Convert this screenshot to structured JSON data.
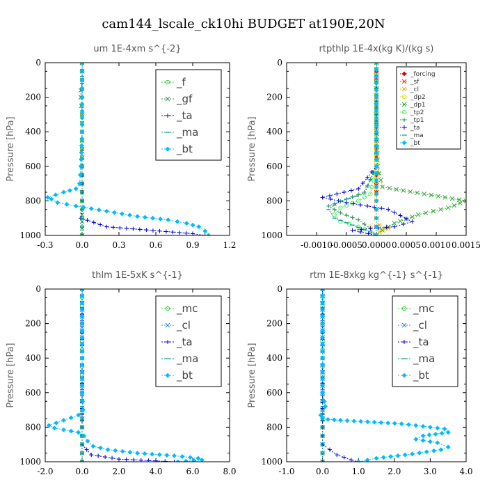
{
  "title": "cam144_lscale_ck10hi  BUDGET at190E,20N",
  "chart_data": [
    {
      "type": "line",
      "title": "um  1E-4xm s^{-2}",
      "ylabel": "Pressure [hPa]",
      "xlim": [
        -0.3,
        1.2
      ],
      "ylim": [
        1000,
        0
      ],
      "xticks": [
        "-0.3",
        "0.0",
        "0.3",
        "0.6",
        "0.9",
        "1.2"
      ],
      "xtick_values": [
        -0.3,
        0.0,
        0.3,
        0.6,
        0.9,
        1.2
      ],
      "yticks": [
        "0",
        "200",
        "400",
        "600",
        "800",
        "1000"
      ],
      "ytick_values": [
        0,
        200,
        400,
        600,
        800,
        1000
      ],
      "legend_position": "top-right",
      "legend_size": "large",
      "series": [
        {
          "name": "_f",
          "color": "#33cc33",
          "marker": "circle",
          "x": [
            0,
            0,
            0,
            0,
            0,
            0,
            0,
            0,
            0,
            0,
            0
          ],
          "y": [
            0,
            100,
            200,
            300,
            400,
            500,
            600,
            700,
            800,
            900,
            1000
          ]
        },
        {
          "name": "_gf",
          "color": "#2e8b57",
          "marker": "x",
          "x": [
            0,
            0,
            -0.01,
            -0.01,
            0,
            0,
            0,
            0,
            0,
            0,
            0
          ],
          "y": [
            0,
            100,
            160,
            200,
            300,
            400,
            500,
            600,
            700,
            800,
            1000
          ]
        },
        {
          "name": "_ta",
          "color": "#0000dd",
          "marker": "plus",
          "x": [
            0,
            0,
            0,
            0,
            0,
            0,
            0,
            0,
            -0.01,
            0.2,
            0.9,
            1.0
          ],
          "y": [
            0,
            200,
            400,
            600,
            700,
            750,
            800,
            850,
            900,
            950,
            990,
            1000
          ]
        },
        {
          "name": "_ma",
          "color": "#009999",
          "marker": "dash",
          "x": [
            0,
            0,
            0,
            0,
            0,
            0,
            0,
            0,
            0
          ],
          "y": [
            0,
            200,
            400,
            600,
            700,
            800,
            850,
            900,
            1000
          ]
        },
        {
          "name": "_bt",
          "color": "#00bbff",
          "marker": "diamond",
          "x": [
            0,
            0,
            0,
            0,
            -0.01,
            -0.02,
            -0.05,
            -0.15,
            -0.28,
            -0.25,
            -0.2,
            -0.05,
            0.2,
            0.45,
            0.7,
            0.85,
            0.95,
            1.0,
            1.03
          ],
          "y": [
            0,
            100,
            200,
            400,
            600,
            700,
            730,
            750,
            780,
            790,
            810,
            830,
            860,
            890,
            910,
            930,
            950,
            975,
            1000
          ]
        }
      ]
    },
    {
      "type": "line",
      "title": "rtpthlp  1E-4x(kg K)/(kg s)",
      "ylabel": "Pressure [hPa]",
      "xlim": [
        -0.0015,
        0.0015
      ],
      "ylim": [
        1000,
        0
      ],
      "xticks": [
        "-0.0010",
        "-0.0005",
        "0.0000",
        "0.0005",
        "0.0010",
        "0.0015"
      ],
      "xtick_values": [
        -0.001,
        -0.0005,
        0.0,
        0.0005,
        0.001,
        0.0015
      ],
      "yticks": [
        "0",
        "200",
        "400",
        "600",
        "800",
        "1000"
      ],
      "ytick_values": [
        0,
        200,
        400,
        600,
        800,
        1000
      ],
      "legend_position": "top-right",
      "legend_size": "small",
      "series": [
        {
          "name": "_forcing",
          "color": "#dd0000",
          "marker": "diamond",
          "x": [
            0,
            0,
            0,
            0,
            0,
            0,
            0,
            0,
            0,
            0,
            0
          ],
          "y": [
            0,
            100,
            200,
            300,
            400,
            500,
            600,
            700,
            800,
            900,
            1000
          ]
        },
        {
          "name": "_sf",
          "color": "#ff2222",
          "marker": "x",
          "x": [
            0,
            0,
            0,
            0,
            0,
            0,
            0,
            0,
            0,
            0,
            0
          ],
          "y": [
            0,
            100,
            200,
            300,
            400,
            500,
            600,
            700,
            800,
            900,
            1000
          ]
        },
        {
          "name": "_cl",
          "color": "#ffaa00",
          "marker": "x",
          "x": [
            0,
            0,
            0,
            0,
            5e-05,
            0.0002,
            5e-05,
            0
          ],
          "y": [
            0,
            600,
            800,
            900,
            940,
            960,
            980,
            1000
          ]
        },
        {
          "name": "_dp2",
          "color": "#dddd00",
          "marker": "circle",
          "x": [
            0,
            0,
            0,
            0,
            -0.0001,
            0.0001,
            0
          ],
          "y": [
            0,
            400,
            800,
            900,
            950,
            970,
            1000
          ]
        },
        {
          "name": "_dp1",
          "color": "#33aa33",
          "marker": "x",
          "x": [
            0,
            0,
            2e-05,
            0.0001,
            0.0008,
            0.0015,
            0.0012,
            0.0007,
            0.0003,
            0.0001,
            0
          ],
          "y": [
            0,
            300,
            600,
            720,
            760,
            800,
            840,
            880,
            930,
            970,
            1000
          ]
        },
        {
          "name": "_tp2",
          "color": "#55ee55",
          "marker": "circle",
          "x": [
            0,
            0,
            -0.0001,
            -0.0003,
            -0.0006,
            -0.0007,
            -0.0006,
            -0.0003,
            -0.0001,
            0
          ],
          "y": [
            0,
            600,
            760,
            800,
            840,
            880,
            920,
            950,
            980,
            1000
          ]
        },
        {
          "name": "_tp1",
          "color": "#2e8b57",
          "marker": "plus",
          "x": [
            0,
            0,
            -0.0002,
            -0.0005,
            -0.0008,
            -0.0006,
            -0.0003,
            -0.0001,
            0
          ],
          "y": [
            0,
            600,
            750,
            790,
            830,
            870,
            910,
            960,
            1000
          ]
        },
        {
          "name": "_ta",
          "color": "#0000dd",
          "marker": "plus",
          "x": [
            0,
            0,
            -0.0003,
            -0.0009,
            -0.0005,
            0.0002,
            0.0006,
            0.0003,
            -0.0001,
            -0.0004,
            0
          ],
          "y": [
            0,
            600,
            730,
            780,
            810,
            850,
            920,
            950,
            960,
            970,
            1000
          ]
        },
        {
          "name": "_ma",
          "color": "#009999",
          "marker": "dash",
          "x": [
            0,
            0,
            -0.0002,
            -0.0006,
            -0.0008,
            -0.0007,
            -0.0004,
            -0.0001,
            0
          ],
          "y": [
            0,
            600,
            760,
            800,
            850,
            900,
            940,
            980,
            1000
          ]
        },
        {
          "name": "_bt",
          "color": "#00bbff",
          "marker": "diamond",
          "x": [
            0,
            0,
            0,
            0,
            0,
            0,
            0
          ],
          "y": [
            0,
            200,
            400,
            600,
            800,
            900,
            1000
          ]
        }
      ]
    },
    {
      "type": "line",
      "title": "thlm  1E-5xK s^{-1}",
      "ylabel": "Pressure [hPa]",
      "xlim": [
        -2.0,
        8.0
      ],
      "ylim": [
        1000,
        0
      ],
      "xticks": [
        "-2.0",
        "0.0",
        "2.0",
        "4.0",
        "6.0",
        "8.0"
      ],
      "xtick_values": [
        -2.0,
        0.0,
        2.0,
        4.0,
        6.0,
        8.0
      ],
      "yticks": [
        "0",
        "200",
        "400",
        "600",
        "800",
        "1000"
      ],
      "ytick_values": [
        0,
        200,
        400,
        600,
        800,
        1000
      ],
      "legend_position": "top-right",
      "legend_size": "large",
      "series": [
        {
          "name": "_mc",
          "color": "#33cc33",
          "marker": "circle",
          "x": [
            0,
            0,
            0,
            0,
            0,
            0,
            0,
            0,
            0,
            0,
            0
          ],
          "y": [
            0,
            100,
            200,
            300,
            400,
            500,
            600,
            700,
            800,
            900,
            1000
          ]
        },
        {
          "name": "_cl",
          "color": "#2288cc",
          "marker": "x",
          "x": [
            0,
            0,
            0,
            0,
            0,
            0,
            0,
            0,
            0
          ],
          "y": [
            0,
            200,
            400,
            600,
            700,
            800,
            900,
            950,
            1000
          ]
        },
        {
          "name": "_ta",
          "color": "#0000dd",
          "marker": "plus",
          "x": [
            0,
            0,
            0,
            0,
            0.5,
            2.0,
            4.0,
            5.0
          ],
          "y": [
            0,
            400,
            800,
            900,
            960,
            985,
            995,
            1000
          ]
        },
        {
          "name": "_ma",
          "color": "#009999",
          "marker": "dash",
          "x": [
            0,
            0,
            0,
            0,
            0,
            0,
            0
          ],
          "y": [
            0,
            200,
            400,
            600,
            800,
            900,
            1000
          ]
        },
        {
          "name": "_bt",
          "color": "#00bbff",
          "marker": "diamond",
          "x": [
            0,
            0,
            0,
            0,
            0.05,
            -0.2,
            -1.0,
            -1.8,
            -1.5,
            -1.0,
            -0.2,
            0.1,
            0.3,
            0.6,
            1.4,
            3.0,
            5.0,
            6.3,
            6.5,
            5.2
          ],
          "y": [
            0,
            200,
            400,
            600,
            700,
            730,
            760,
            790,
            805,
            815,
            830,
            850,
            880,
            910,
            930,
            950,
            965,
            980,
            990,
            1000
          ]
        }
      ]
    },
    {
      "type": "line",
      "title": "rtm  1E-8xkg kg^{-1} s^{-1}",
      "ylabel": "Pressure [hPa]",
      "xlim": [
        -1.0,
        4.0
      ],
      "ylim": [
        1000,
        0
      ],
      "xticks": [
        "-1.0",
        "0.0",
        "1.0",
        "2.0",
        "3.0",
        "4.0"
      ],
      "xtick_values": [
        -1.0,
        0.0,
        1.0,
        2.0,
        3.0,
        4.0
      ],
      "yticks": [
        "0",
        "200",
        "400",
        "600",
        "800",
        "1000"
      ],
      "ytick_values": [
        0,
        200,
        400,
        600,
        800,
        1000
      ],
      "legend_position": "top-right",
      "legend_size": "large",
      "series": [
        {
          "name": "_mc",
          "color": "#33cc33",
          "marker": "circle",
          "x": [
            0,
            0,
            0,
            0,
            0,
            0,
            0,
            0,
            0,
            0,
            0
          ],
          "y": [
            0,
            100,
            200,
            300,
            400,
            500,
            600,
            700,
            800,
            900,
            1000
          ]
        },
        {
          "name": "_cl",
          "color": "#2288cc",
          "marker": "x",
          "x": [
            0,
            0,
            0,
            0,
            0,
            0,
            0,
            0,
            0
          ],
          "y": [
            0,
            200,
            400,
            600,
            700,
            800,
            900,
            950,
            1000
          ]
        },
        {
          "name": "_ta",
          "color": "#0000dd",
          "marker": "plus",
          "x": [
            0,
            0,
            0,
            0,
            0.4,
            0.8,
            1.0
          ],
          "y": [
            0,
            400,
            800,
            900,
            960,
            990,
            1000
          ]
        },
        {
          "name": "_ma",
          "color": "#009999",
          "marker": "dash",
          "x": [
            0,
            0,
            0,
            0,
            0,
            0,
            0
          ],
          "y": [
            0,
            200,
            400,
            600,
            800,
            900,
            1000
          ]
        },
        {
          "name": "_bt",
          "color": "#00bbff",
          "marker": "diamond",
          "x": [
            0,
            0,
            0,
            0,
            0.05,
            0.08,
            -0.05,
            0.0,
            0.15,
            0.5,
            2.2,
            3.4,
            3.5,
            2.8,
            2.6,
            3.2,
            3.5,
            3.3,
            2.5,
            1.5,
            1.0
          ],
          "y": [
            0,
            200,
            400,
            600,
            650,
            680,
            730,
            745,
            755,
            760,
            780,
            810,
            830,
            850,
            870,
            890,
            915,
            930,
            955,
            980,
            1000
          ]
        }
      ]
    }
  ]
}
